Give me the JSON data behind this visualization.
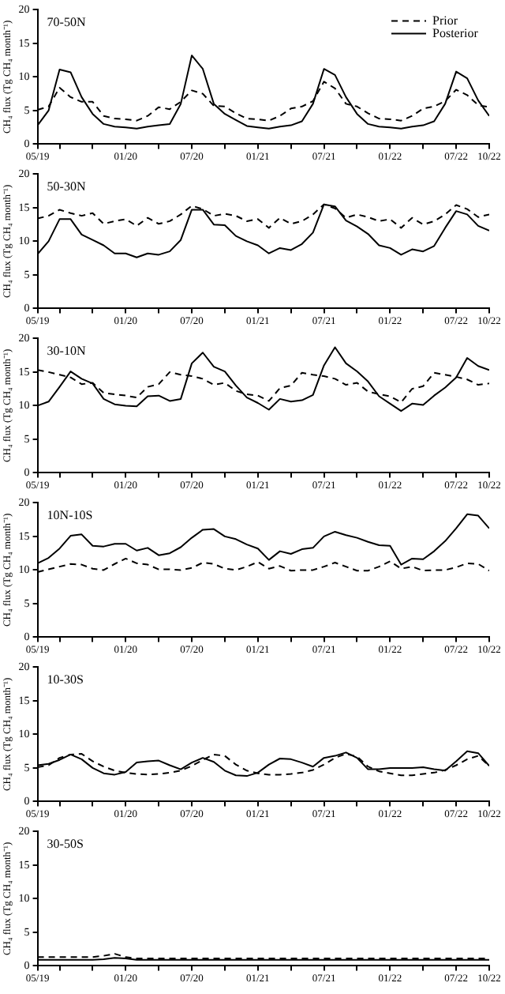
{
  "chart_data": [
    {
      "type": "line",
      "title": "70-50N",
      "ylabel": "CH₄ flux (Tg CH₄ month⁻¹)",
      "legend": "top right",
      "marker": "none",
      "x": [
        "2019-05",
        "2019-06",
        "2019-07",
        "2019-08",
        "2019-09",
        "2019-10",
        "2019-11",
        "2019-12",
        "2020-01",
        "2020-02",
        "2020-03",
        "2020-04",
        "2020-05",
        "2020-06",
        "2020-07",
        "2020-08",
        "2020-09",
        "2020-10",
        "2020-11",
        "2020-12",
        "2021-01",
        "2021-02",
        "2021-03",
        "2021-04",
        "2021-05",
        "2021-06",
        "2021-07",
        "2021-08",
        "2021-09",
        "2021-10",
        "2021-11",
        "2021-12",
        "2022-01",
        "2022-02",
        "2022-03",
        "2022-04",
        "2022-05",
        "2022-06",
        "2022-07",
        "2022-08",
        "2022-09",
        "2022-10"
      ],
      "xlim": [
        "2019-05",
        "2022-10"
      ],
      "xticks": [
        {
          "value": "2019-05",
          "label": "05/19"
        },
        {
          "value": "2019-07",
          "label": null
        },
        {
          "value": "2019-10",
          "label": null
        },
        {
          "value": "2020-01",
          "label": "01/20"
        },
        {
          "value": "2020-04",
          "label": null
        },
        {
          "value": "2020-07",
          "label": "07/20"
        },
        {
          "value": "2020-10",
          "label": null
        },
        {
          "value": "2021-01",
          "label": "01/21"
        },
        {
          "value": "2021-04",
          "label": null
        },
        {
          "value": "2021-07",
          "label": "07/21"
        },
        {
          "value": "2021-10",
          "label": null
        },
        {
          "value": "2022-01",
          "label": "01/22"
        },
        {
          "value": "2022-04",
          "label": null
        },
        {
          "value": "2022-07",
          "label": "07/22"
        },
        {
          "value": "2022-10",
          "label": "10/22"
        }
      ],
      "ylim": [
        0,
        20
      ],
      "yticks": [
        0,
        5,
        10,
        15,
        20
      ],
      "series": [
        {
          "name": "Prior",
          "color": "#000000",
          "line_style": "dashed",
          "values": [
            5.1,
            5.6,
            8.4,
            7.0,
            6.3,
            6.3,
            4.2,
            3.8,
            3.7,
            3.5,
            4.2,
            5.5,
            5.2,
            6.3,
            8.0,
            7.5,
            5.7,
            5.6,
            4.6,
            3.8,
            3.7,
            3.5,
            4.2,
            5.3,
            5.6,
            6.4,
            9.3,
            8.3,
            6.0,
            5.6,
            4.6,
            3.8,
            3.7,
            3.5,
            4.2,
            5.3,
            5.6,
            6.4,
            8.1,
            7.3,
            5.8,
            5.5
          ]
        },
        {
          "name": "Posterior",
          "color": "#000000",
          "line_style": "solid",
          "values": [
            2.8,
            5.0,
            11.1,
            10.7,
            7.0,
            4.5,
            3.0,
            2.6,
            2.5,
            2.3,
            2.6,
            2.8,
            3.0,
            6.0,
            13.2,
            11.2,
            6.0,
            4.5,
            3.6,
            2.7,
            2.5,
            2.3,
            2.6,
            2.8,
            3.4,
            6.0,
            11.2,
            10.3,
            7.0,
            4.5,
            3.0,
            2.6,
            2.5,
            2.3,
            2.6,
            2.8,
            3.4,
            6.0,
            10.8,
            9.8,
            6.5,
            4.2
          ]
        }
      ]
    },
    {
      "type": "line",
      "title": "50-30N",
      "ylabel": "CH₄ flux (Tg CH₄ month⁻¹)",
      "marker": "none",
      "x": [
        "2019-05",
        "2019-06",
        "2019-07",
        "2019-08",
        "2019-09",
        "2019-10",
        "2019-11",
        "2019-12",
        "2020-01",
        "2020-02",
        "2020-03",
        "2020-04",
        "2020-05",
        "2020-06",
        "2020-07",
        "2020-08",
        "2020-09",
        "2020-10",
        "2020-11",
        "2020-12",
        "2021-01",
        "2021-02",
        "2021-03",
        "2021-04",
        "2021-05",
        "2021-06",
        "2021-07",
        "2021-08",
        "2021-09",
        "2021-10",
        "2021-11",
        "2021-12",
        "2022-01",
        "2022-02",
        "2022-03",
        "2022-04",
        "2022-05",
        "2022-06",
        "2022-07",
        "2022-08",
        "2022-09",
        "2022-10"
      ],
      "xlim": [
        "2019-05",
        "2022-10"
      ],
      "xticks": [
        {
          "value": "2019-05",
          "label": "05/19"
        },
        {
          "value": "2019-07",
          "label": null
        },
        {
          "value": "2019-10",
          "label": null
        },
        {
          "value": "2020-01",
          "label": "01/20"
        },
        {
          "value": "2020-04",
          "label": null
        },
        {
          "value": "2020-07",
          "label": "07/20"
        },
        {
          "value": "2020-10",
          "label": null
        },
        {
          "value": "2021-01",
          "label": "01/21"
        },
        {
          "value": "2021-04",
          "label": null
        },
        {
          "value": "2021-07",
          "label": "07/21"
        },
        {
          "value": "2021-10",
          "label": null
        },
        {
          "value": "2022-01",
          "label": "01/22"
        },
        {
          "value": "2022-04",
          "label": null
        },
        {
          "value": "2022-07",
          "label": "07/22"
        },
        {
          "value": "2022-10",
          "label": "10/22"
        }
      ],
      "ylim": [
        0,
        20
      ],
      "yticks": [
        0,
        5,
        10,
        15,
        20
      ],
      "series": [
        {
          "color": "#000000",
          "line_style": "dashed",
          "values": [
            13.4,
            13.8,
            14.7,
            14.2,
            13.8,
            14.2,
            12.6,
            13.0,
            13.3,
            12.3,
            13.5,
            12.6,
            13.0,
            14.0,
            15.3,
            14.8,
            13.8,
            14.1,
            13.8,
            13.0,
            13.3,
            12.0,
            13.5,
            12.6,
            13.0,
            14.0,
            15.5,
            14.9,
            13.5,
            14.0,
            13.6,
            13.0,
            13.3,
            12.0,
            13.5,
            12.5,
            13.0,
            14.0,
            15.4,
            14.8,
            13.6,
            14.0
          ]
        },
        {
          "color": "#000000",
          "line_style": "solid",
          "values": [
            8.1,
            10.0,
            13.3,
            13.3,
            11.0,
            10.2,
            9.4,
            8.2,
            8.2,
            7.6,
            8.2,
            8.0,
            8.5,
            10.2,
            14.7,
            14.7,
            12.5,
            12.4,
            10.8,
            10.0,
            9.4,
            8.2,
            9.0,
            8.7,
            9.6,
            11.3,
            15.5,
            15.2,
            13.1,
            12.2,
            11.1,
            9.4,
            9.0,
            8.0,
            8.8,
            8.5,
            9.3,
            12.0,
            14.5,
            14.0,
            12.3,
            11.6
          ]
        }
      ]
    },
    {
      "type": "line",
      "title": "30-10N",
      "ylabel": "CH₄ flux (Tg CH₄ month⁻¹)",
      "marker": "none",
      "x": [
        "2019-05",
        "2019-06",
        "2019-07",
        "2019-08",
        "2019-09",
        "2019-10",
        "2019-11",
        "2019-12",
        "2020-01",
        "2020-02",
        "2020-03",
        "2020-04",
        "2020-05",
        "2020-06",
        "2020-07",
        "2020-08",
        "2020-09",
        "2020-10",
        "2020-11",
        "2020-12",
        "2021-01",
        "2021-02",
        "2021-03",
        "2021-04",
        "2021-05",
        "2021-06",
        "2021-07",
        "2021-08",
        "2021-09",
        "2021-10",
        "2021-11",
        "2021-12",
        "2022-01",
        "2022-02",
        "2022-03",
        "2022-04",
        "2022-05",
        "2022-06",
        "2022-07",
        "2022-08",
        "2022-09",
        "2022-10"
      ],
      "xlim": [
        "2019-05",
        "2022-10"
      ],
      "xticks": [
        {
          "value": "2019-05",
          "label": "05/19"
        },
        {
          "value": "2019-07",
          "label": null
        },
        {
          "value": "2019-10",
          "label": null
        },
        {
          "value": "2020-01",
          "label": "01/20"
        },
        {
          "value": "2020-04",
          "label": null
        },
        {
          "value": "2020-07",
          "label": "07/20"
        },
        {
          "value": "2020-10",
          "label": null
        },
        {
          "value": "2021-01",
          "label": "01/21"
        },
        {
          "value": "2021-04",
          "label": null
        },
        {
          "value": "2021-07",
          "label": "07/21"
        },
        {
          "value": "2021-10",
          "label": null
        },
        {
          "value": "2022-01",
          "label": "01/22"
        },
        {
          "value": "2022-04",
          "label": null
        },
        {
          "value": "2022-07",
          "label": "07/22"
        },
        {
          "value": "2022-10",
          "label": "10/22"
        }
      ],
      "ylim": [
        0,
        20
      ],
      "yticks": [
        0,
        5,
        10,
        15,
        20
      ],
      "series": [
        {
          "color": "#000000",
          "line_style": "dashed",
          "values": [
            15.3,
            15.0,
            14.6,
            14.2,
            13.2,
            13.4,
            11.9,
            11.7,
            11.5,
            11.2,
            12.8,
            13.2,
            15.0,
            14.6,
            14.4,
            14.0,
            13.1,
            13.4,
            12.2,
            11.7,
            11.5,
            10.7,
            12.6,
            13.0,
            14.9,
            14.6,
            14.4,
            14.0,
            13.1,
            13.4,
            12.1,
            11.7,
            11.4,
            10.5,
            12.5,
            12.9,
            14.9,
            14.6,
            14.3,
            13.9,
            13.1,
            13.3
          ]
        },
        {
          "color": "#000000",
          "line_style": "solid",
          "values": [
            10.0,
            10.6,
            12.8,
            15.1,
            14.0,
            13.3,
            11.0,
            10.2,
            10.0,
            9.9,
            11.4,
            11.5,
            10.7,
            11.0,
            16.3,
            17.9,
            15.8,
            15.1,
            13.0,
            11.2,
            10.4,
            9.4,
            11.0,
            10.6,
            10.8,
            11.6,
            16.0,
            18.7,
            16.3,
            15.1,
            13.6,
            11.4,
            10.3,
            9.2,
            10.3,
            10.1,
            11.5,
            12.7,
            14.2,
            17.1,
            15.9,
            15.3
          ]
        }
      ]
    },
    {
      "type": "line",
      "title": "10N-10S",
      "ylabel": "CH₄ flux (Tg CH₄ month⁻¹)",
      "marker": "none",
      "x": [
        "2019-05",
        "2019-06",
        "2019-07",
        "2019-08",
        "2019-09",
        "2019-10",
        "2019-11",
        "2019-12",
        "2020-01",
        "2020-02",
        "2020-03",
        "2020-04",
        "2020-05",
        "2020-06",
        "2020-07",
        "2020-08",
        "2020-09",
        "2020-10",
        "2020-11",
        "2020-12",
        "2021-01",
        "2021-02",
        "2021-03",
        "2021-04",
        "2021-05",
        "2021-06",
        "2021-07",
        "2021-08",
        "2021-09",
        "2021-10",
        "2021-11",
        "2021-12",
        "2022-01",
        "2022-02",
        "2022-03",
        "2022-04",
        "2022-05",
        "2022-06",
        "2022-07",
        "2022-08",
        "2022-09",
        "2022-10"
      ],
      "xlim": [
        "2019-05",
        "2022-10"
      ],
      "xticks": [
        {
          "value": "2019-05",
          "label": "05/19"
        },
        {
          "value": "2019-07",
          "label": null
        },
        {
          "value": "2019-10",
          "label": null
        },
        {
          "value": "2020-01",
          "label": "01/20"
        },
        {
          "value": "2020-04",
          "label": null
        },
        {
          "value": "2020-07",
          "label": "07/20"
        },
        {
          "value": "2020-10",
          "label": null
        },
        {
          "value": "2021-01",
          "label": "01/21"
        },
        {
          "value": "2021-04",
          "label": null
        },
        {
          "value": "2021-07",
          "label": "07/21"
        },
        {
          "value": "2021-10",
          "label": null
        },
        {
          "value": "2022-01",
          "label": "01/22"
        },
        {
          "value": "2022-04",
          "label": null
        },
        {
          "value": "2022-07",
          "label": "07/22"
        },
        {
          "value": "2022-10",
          "label": "10/22"
        }
      ],
      "ylim": [
        0,
        20
      ],
      "yticks": [
        0,
        5,
        10,
        15,
        20
      ],
      "series": [
        {
          "color": "#000000",
          "line_style": "dashed",
          "values": [
            9.7,
            10.1,
            10.5,
            10.9,
            10.8,
            10.2,
            10.0,
            10.9,
            11.7,
            11.0,
            10.8,
            10.1,
            10.1,
            10.0,
            10.3,
            11.1,
            10.9,
            10.2,
            10.0,
            10.5,
            11.2,
            10.2,
            10.6,
            9.9,
            10.0,
            10.0,
            10.5,
            11.1,
            10.5,
            9.9,
            9.9,
            10.5,
            11.3,
            10.2,
            10.5,
            9.9,
            10.0,
            10.0,
            10.4,
            11.0,
            10.9,
            9.9
          ]
        },
        {
          "color": "#000000",
          "line_style": "solid",
          "values": [
            11.0,
            11.8,
            13.2,
            15.1,
            15.3,
            13.6,
            13.5,
            13.9,
            13.9,
            12.9,
            13.3,
            12.2,
            12.5,
            13.4,
            14.8,
            16.0,
            16.1,
            15.0,
            14.6,
            13.8,
            13.2,
            11.5,
            12.8,
            12.4,
            13.1,
            13.3,
            15.0,
            15.7,
            15.2,
            14.8,
            14.2,
            13.7,
            13.6,
            10.8,
            11.7,
            11.6,
            12.8,
            14.3,
            16.2,
            18.3,
            18.1,
            16.2
          ]
        }
      ]
    },
    {
      "type": "line",
      "title": "10-30S",
      "ylabel": "CH₄ flux (Tg CH₄ month⁻¹)",
      "marker": "none",
      "x": [
        "2019-05",
        "2019-06",
        "2019-07",
        "2019-08",
        "2019-09",
        "2019-10",
        "2019-11",
        "2019-12",
        "2020-01",
        "2020-02",
        "2020-03",
        "2020-04",
        "2020-05",
        "2020-06",
        "2020-07",
        "2020-08",
        "2020-09",
        "2020-10",
        "2020-11",
        "2020-12",
        "2021-01",
        "2021-02",
        "2021-03",
        "2021-04",
        "2021-05",
        "2021-06",
        "2021-07",
        "2021-08",
        "2021-09",
        "2021-10",
        "2021-11",
        "2021-12",
        "2022-01",
        "2022-02",
        "2022-03",
        "2022-04",
        "2022-05",
        "2022-06",
        "2022-07",
        "2022-08",
        "2022-09",
        "2022-10"
      ],
      "xlim": [
        "2019-05",
        "2022-10"
      ],
      "xticks": [
        {
          "value": "2019-05",
          "label": "05/19"
        },
        {
          "value": "2019-07",
          "label": null
        },
        {
          "value": "2019-10",
          "label": null
        },
        {
          "value": "2020-01",
          "label": "01/20"
        },
        {
          "value": "2020-04",
          "label": null
        },
        {
          "value": "2020-07",
          "label": "07/20"
        },
        {
          "value": "2020-10",
          "label": null
        },
        {
          "value": "2021-01",
          "label": "01/21"
        },
        {
          "value": "2021-04",
          "label": null
        },
        {
          "value": "2021-07",
          "label": "07/21"
        },
        {
          "value": "2021-10",
          "label": null
        },
        {
          "value": "2022-01",
          "label": "01/22"
        },
        {
          "value": "2022-04",
          "label": null
        },
        {
          "value": "2022-07",
          "label": "07/22"
        },
        {
          "value": "2022-10",
          "label": "10/22"
        }
      ],
      "ylim": [
        0,
        20
      ],
      "yticks": [
        0,
        5,
        10,
        15,
        20
      ],
      "series": [
        {
          "color": "#000000",
          "line_style": "dashed",
          "values": [
            5.1,
            5.4,
            6.5,
            7.0,
            7.1,
            6.0,
            5.2,
            4.6,
            4.3,
            4.1,
            4.0,
            4.1,
            4.3,
            4.6,
            5.3,
            6.2,
            7.0,
            6.8,
            5.5,
            4.6,
            4.2,
            4.0,
            4.0,
            4.1,
            4.3,
            4.7,
            5.5,
            6.5,
            7.1,
            6.7,
            5.2,
            4.5,
            4.2,
            3.9,
            3.9,
            4.1,
            4.3,
            4.7,
            5.4,
            6.3,
            6.8,
            5.3
          ]
        },
        {
          "color": "#000000",
          "line_style": "solid",
          "values": [
            5.4,
            5.6,
            6.2,
            7.0,
            6.3,
            5.0,
            4.2,
            4.0,
            4.4,
            5.8,
            6.0,
            6.1,
            5.4,
            4.8,
            5.8,
            6.5,
            5.9,
            4.6,
            3.9,
            3.8,
            4.3,
            5.5,
            6.4,
            6.3,
            5.8,
            5.2,
            6.5,
            6.8,
            7.3,
            6.5,
            4.8,
            4.8,
            5.0,
            5.0,
            5.0,
            5.1,
            4.8,
            4.6,
            6.0,
            7.5,
            7.2,
            5.3
          ]
        }
      ]
    },
    {
      "type": "line",
      "title": "30-50S",
      "ylabel": "CH₄ flux (Tg CH₄ month⁻¹)",
      "marker": "none",
      "x": [
        "2019-05",
        "2019-06",
        "2019-07",
        "2019-08",
        "2019-09",
        "2019-10",
        "2019-11",
        "2019-12",
        "2020-01",
        "2020-02",
        "2020-03",
        "2020-04",
        "2020-05",
        "2020-06",
        "2020-07",
        "2020-08",
        "2020-09",
        "2020-10",
        "2020-11",
        "2020-12",
        "2021-01",
        "2021-02",
        "2021-03",
        "2021-04",
        "2021-05",
        "2021-06",
        "2021-07",
        "2021-08",
        "2021-09",
        "2021-10",
        "2021-11",
        "2021-12",
        "2022-01",
        "2022-02",
        "2022-03",
        "2022-04",
        "2022-05",
        "2022-06",
        "2022-07",
        "2022-08",
        "2022-09",
        "2022-10"
      ],
      "xlim": [
        "2019-05",
        "2022-10"
      ],
      "xticks": [
        {
          "value": "2019-05",
          "label": "05/19"
        },
        {
          "value": "2019-07",
          "label": null
        },
        {
          "value": "2019-10",
          "label": null
        },
        {
          "value": "2020-01",
          "label": "01/20"
        },
        {
          "value": "2020-04",
          "label": null
        },
        {
          "value": "2020-07",
          "label": "07/20"
        },
        {
          "value": "2020-10",
          "label": null
        },
        {
          "value": "2021-01",
          "label": "01/21"
        },
        {
          "value": "2021-04",
          "label": null
        },
        {
          "value": "2021-07",
          "label": "07/21"
        },
        {
          "value": "2021-10",
          "label": null
        },
        {
          "value": "2022-01",
          "label": "01/22"
        },
        {
          "value": "2022-04",
          "label": null
        },
        {
          "value": "2022-07",
          "label": "07/22"
        },
        {
          "value": "2022-10",
          "label": "10/22"
        }
      ],
      "ylim": [
        0,
        20
      ],
      "yticks": [
        0,
        5,
        10,
        15,
        20
      ],
      "series": [
        {
          "color": "#000000",
          "line_style": "dashed",
          "values": [
            1.3,
            1.3,
            1.3,
            1.3,
            1.3,
            1.3,
            1.5,
            1.8,
            1.3,
            1.1,
            1.1,
            1.1,
            1.1,
            1.1,
            1.1,
            1.1,
            1.1,
            1.1,
            1.1,
            1.1,
            1.1,
            1.1,
            1.1,
            1.1,
            1.1,
            1.1,
            1.1,
            1.1,
            1.1,
            1.1,
            1.1,
            1.1,
            1.1,
            1.1,
            1.1,
            1.1,
            1.1,
            1.1,
            1.1,
            1.1,
            1.1,
            1.1
          ]
        },
        {
          "color": "#000000",
          "line_style": "solid",
          "values": [
            0.9,
            0.9,
            0.9,
            0.9,
            0.9,
            0.9,
            1.0,
            1.2,
            1.1,
            0.9,
            0.9,
            0.9,
            0.9,
            0.9,
            0.9,
            0.9,
            0.9,
            0.9,
            0.9,
            0.9,
            0.9,
            0.9,
            0.9,
            0.9,
            0.9,
            0.9,
            0.9,
            0.9,
            0.9,
            0.9,
            0.9,
            0.9,
            0.9,
            0.9,
            0.9,
            0.9,
            0.9,
            0.9,
            0.9,
            0.9,
            0.9,
            0.9
          ]
        }
      ]
    }
  ]
}
